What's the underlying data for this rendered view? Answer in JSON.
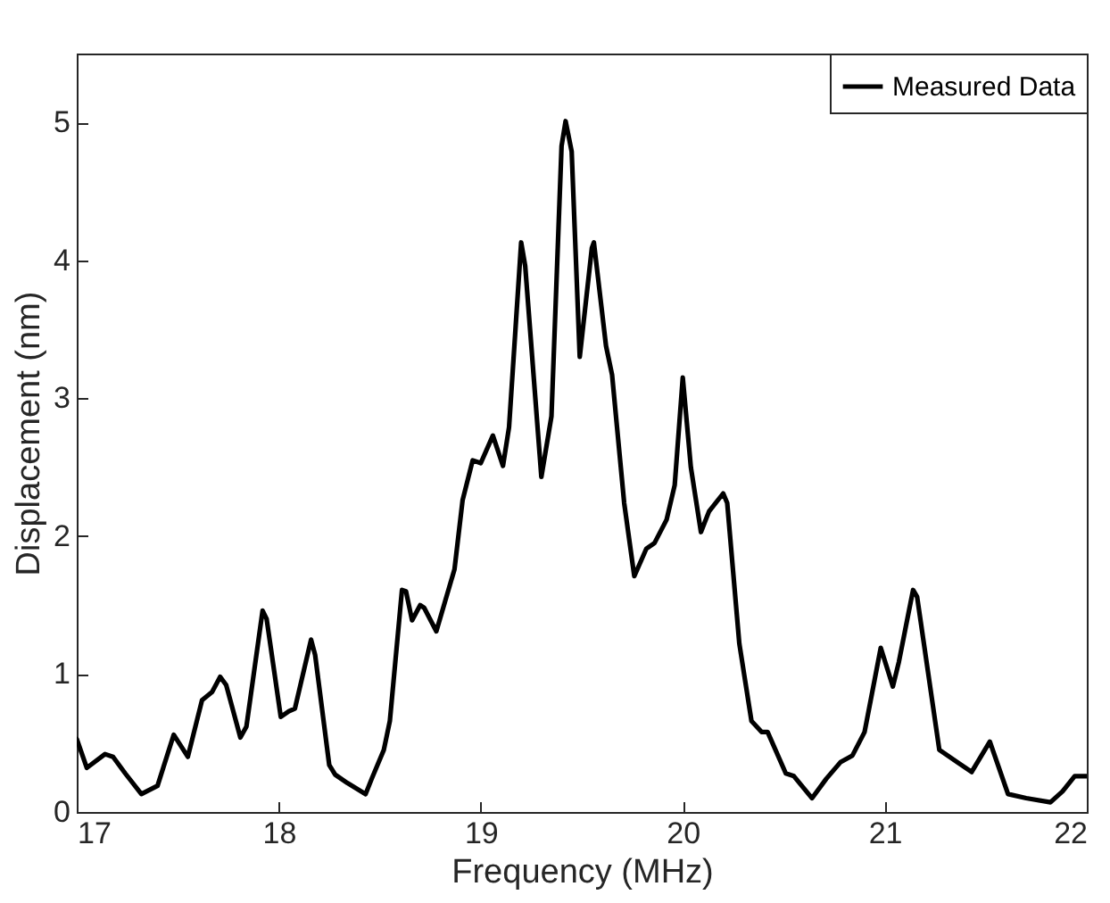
{
  "chart_data": {
    "type": "line",
    "xlabel": "Frequency (MHz)",
    "ylabel": "Displacement (nm)",
    "xlim": [
      17,
      22
    ],
    "xticks": [
      17,
      18,
      19,
      20,
      21,
      22
    ],
    "ylim": [
      0,
      5.5
    ],
    "yticks": [
      0,
      1,
      2,
      3,
      4,
      5
    ],
    "legend": "top right",
    "grid": false,
    "marker": "none",
    "line_style": "solid",
    "series": [
      {
        "name": "Measured Data",
        "color": "#000000",
        "x": [
          17.0,
          17.05,
          17.14,
          17.18,
          17.24,
          17.32,
          17.4,
          17.48,
          17.55,
          17.62,
          17.67,
          17.71,
          17.74,
          17.81,
          17.84,
          17.92,
          17.94,
          18.01,
          18.05,
          18.08,
          18.16,
          18.18,
          18.25,
          18.28,
          18.34,
          18.43,
          18.46,
          18.52,
          18.55,
          18.61,
          18.63,
          18.66,
          18.7,
          18.72,
          18.78,
          18.87,
          18.91,
          18.96,
          19.0,
          19.06,
          19.11,
          19.14,
          19.2,
          19.22,
          19.3,
          19.35,
          19.4,
          19.42,
          19.45,
          19.49,
          19.55,
          19.56,
          19.62,
          19.65,
          19.71,
          19.76,
          19.82,
          19.86,
          19.92,
          19.96,
          20.0,
          20.04,
          20.09,
          20.13,
          20.2,
          20.22,
          20.28,
          20.34,
          20.39,
          20.42,
          20.51,
          20.55,
          20.64,
          20.71,
          20.78,
          20.84,
          20.9,
          20.98,
          21.04,
          21.07,
          21.14,
          21.16,
          21.27,
          21.36,
          21.43,
          21.52,
          21.61,
          21.7,
          21.82,
          21.88,
          21.94,
          22.0
        ],
        "values": [
          0.53,
          0.32,
          0.42,
          0.4,
          0.28,
          0.13,
          0.19,
          0.56,
          0.4,
          0.81,
          0.87,
          0.98,
          0.92,
          0.54,
          0.62,
          1.46,
          1.4,
          0.69,
          0.73,
          0.75,
          1.25,
          1.14,
          0.34,
          0.27,
          0.21,
          0.13,
          0.24,
          0.45,
          0.66,
          1.61,
          1.6,
          1.39,
          1.5,
          1.48,
          1.31,
          1.76,
          2.26,
          2.55,
          2.53,
          2.73,
          2.51,
          2.79,
          4.13,
          3.96,
          2.43,
          2.87,
          4.83,
          5.01,
          4.79,
          3.3,
          4.09,
          4.13,
          3.38,
          3.17,
          2.24,
          1.71,
          1.91,
          1.95,
          2.12,
          2.37,
          3.15,
          2.5,
          2.03,
          2.18,
          2.31,
          2.24,
          1.22,
          0.66,
          0.58,
          0.58,
          0.28,
          0.26,
          0.1,
          0.24,
          0.36,
          0.41,
          0.58,
          1.19,
          0.91,
          1.09,
          1.61,
          1.56,
          0.45,
          0.36,
          0.29,
          0.51,
          0.13,
          0.1,
          0.07,
          0.15,
          0.26,
          0.26
        ]
      }
    ]
  }
}
